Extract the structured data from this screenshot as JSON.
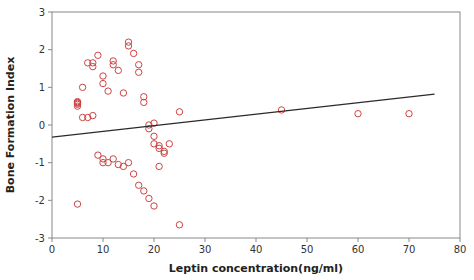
{
  "chart_data": {
    "type": "scatter",
    "xlabel": "Leptin concentration(ng/ml)",
    "ylabel": "Bone Formation Index",
    "xlim": [
      0,
      80
    ],
    "ylim": [
      -3,
      3
    ],
    "xticks": [
      0,
      10,
      20,
      30,
      40,
      50,
      60,
      70,
      80
    ],
    "yticks": [
      -3,
      -2,
      -1,
      0,
      1,
      2,
      3
    ],
    "series": [
      {
        "type": "scatter",
        "marker": "open-circle",
        "color": "#cc4444",
        "x": [
          5,
          5,
          5,
          5,
          5,
          6,
          7,
          8,
          8,
          9,
          10,
          10,
          11,
          12,
          12,
          13,
          14,
          15,
          15,
          16,
          17,
          17,
          18,
          18,
          19,
          19,
          20,
          20,
          21,
          21,
          22,
          23,
          25,
          45,
          60,
          70,
          5,
          6,
          7,
          8,
          9,
          10,
          10,
          11,
          12,
          13,
          14,
          15,
          16,
          17,
          18,
          19,
          20,
          20,
          21,
          22,
          25
        ],
        "values": [
          0.6,
          0.55,
          0.5,
          0.62,
          0.58,
          1.0,
          1.65,
          1.55,
          1.65,
          1.85,
          1.3,
          1.1,
          0.9,
          1.7,
          1.6,
          1.45,
          0.85,
          2.1,
          2.2,
          1.9,
          1.6,
          1.4,
          0.75,
          0.6,
          0.0,
          -0.1,
          -0.3,
          0.05,
          -0.55,
          -0.62,
          -0.7,
          -0.5,
          0.35,
          0.4,
          0.3,
          0.3,
          -2.1,
          0.2,
          0.2,
          0.25,
          -0.8,
          -0.9,
          -1.0,
          -1.0,
          -0.9,
          -1.05,
          -1.1,
          -1.0,
          -1.3,
          -1.6,
          -1.75,
          -1.95,
          -2.15,
          -0.5,
          -1.1,
          -0.75,
          -2.65
        ]
      },
      {
        "type": "line",
        "line_style": "solid",
        "color": "#2a2a2a",
        "x": [
          0,
          75
        ],
        "values": [
          -0.32,
          0.82
        ]
      }
    ]
  }
}
